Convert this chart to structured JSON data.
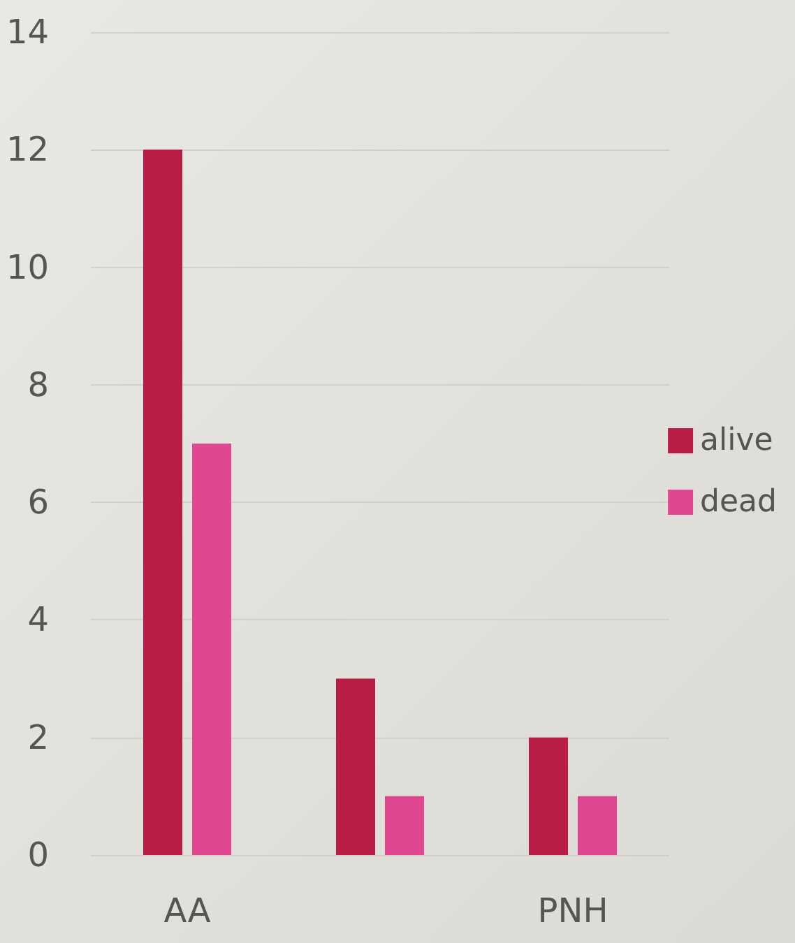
{
  "chart_data": {
    "type": "bar",
    "categories": [
      "AA",
      null,
      "PNH"
    ],
    "series": [
      {
        "name": "alive",
        "color": "#b91c45",
        "values": [
          12,
          3,
          2
        ]
      },
      {
        "name": "dead",
        "color": "#df4891",
        "values": [
          7,
          1,
          1
        ]
      }
    ],
    "ylim": [
      0,
      14
    ],
    "yticks": [
      0,
      2,
      4,
      6,
      8,
      10,
      12,
      14
    ],
    "grid": "y",
    "legend": "right"
  }
}
